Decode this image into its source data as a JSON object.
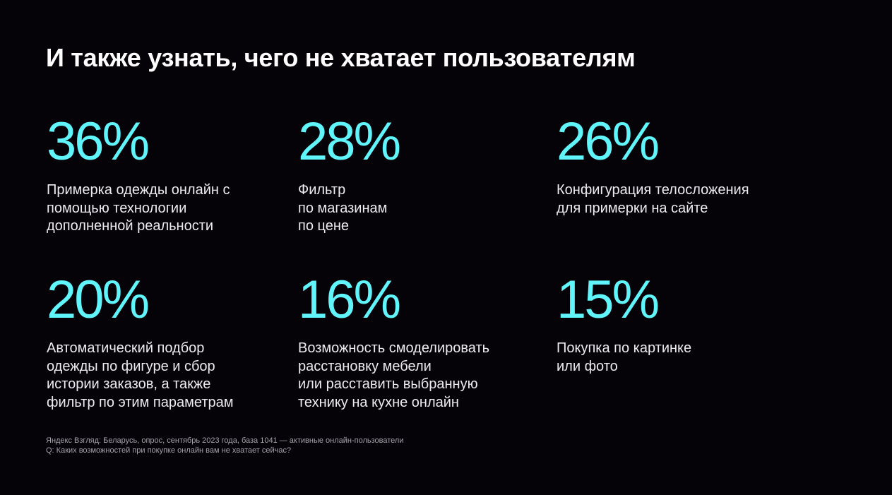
{
  "slide": {
    "title": "И также узнать, чего не хватает пользователям",
    "accent_color": "#5ff5fb",
    "background_color": "#050208"
  },
  "stats": [
    {
      "value": "36%",
      "description": "Примерка одежды онлайн с\nпомощью технологии\nдополненной реальности"
    },
    {
      "value": "28%",
      "description": "Фильтр\nпо магазинам\nпо цене"
    },
    {
      "value": "26%",
      "description": "Конфигурация телосложения\nдля примерки на сайте"
    },
    {
      "value": "20%",
      "description": "Автоматический подбор\nодежды по фигуре и сбор\nистории заказов, а также\nфильтр по этим параметрам"
    },
    {
      "value": "16%",
      "description": "Возможность смоделировать\nрасстановку мебели\nили расставить выбранную\nтехнику на кухне онлайн"
    },
    {
      "value": "15%",
      "description": "Покупка по картинке\nили фото"
    }
  ],
  "footnote": {
    "source": "Яндекс Взгляд: Беларусь, опрос, сентябрь 2023 года, база 1041 — активные онлайн-пользователи",
    "question": "Q: Каких возможностей при покупке онлайн вам не хватает сейчас?"
  }
}
